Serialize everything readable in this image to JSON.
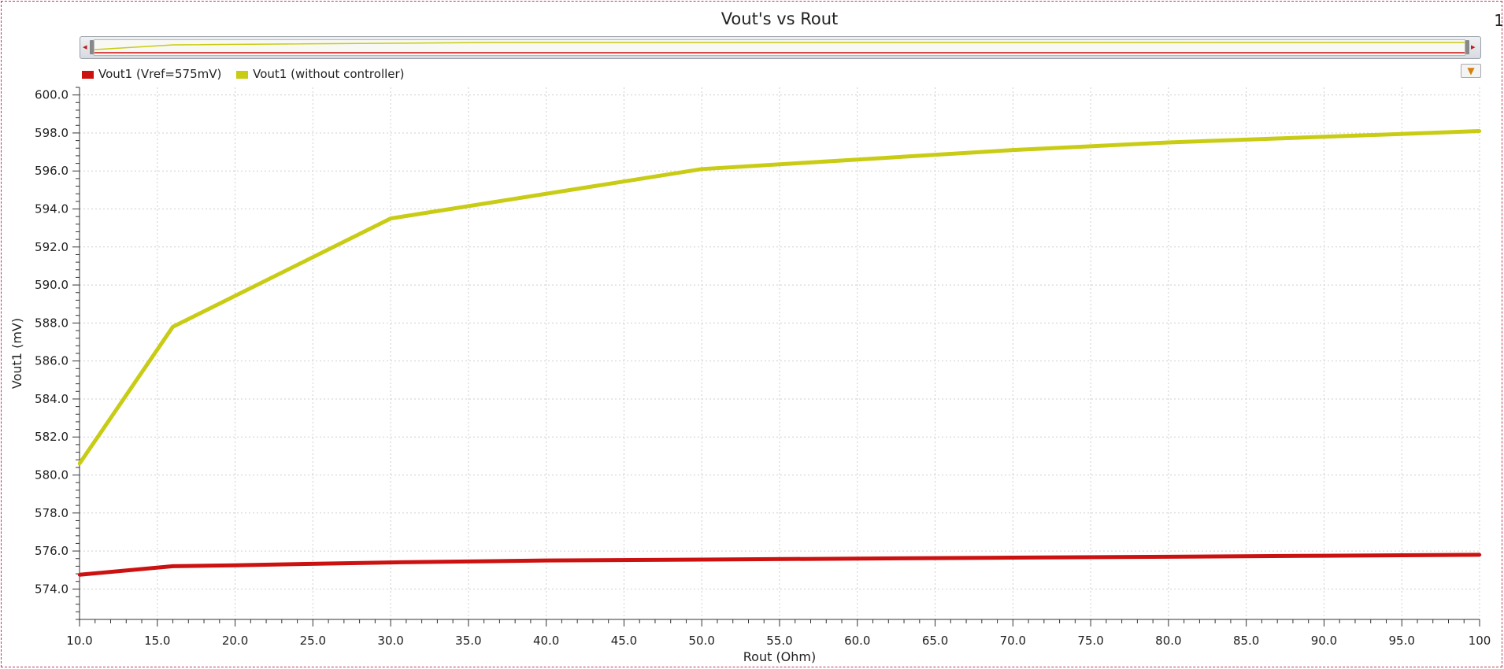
{
  "window": {
    "corner_mark": "1"
  },
  "legend": {
    "items": [
      {
        "label": "Vout1  (Vref=575mV)",
        "color": "#cc1111"
      },
      {
        "label": "Vout1 (without controller)",
        "color": "#c8cc14"
      }
    ]
  },
  "overview": {
    "left_arrow": "◂",
    "right_arrow": "▸"
  },
  "filter_icon_glyph": "▼",
  "chart_data": {
    "type": "line",
    "title": "Vout's vs Rout",
    "xlabel": "Rout (Ohm)",
    "ylabel": "Vout1 (mV)",
    "xlim": [
      10,
      100
    ],
    "ylim": [
      572.4,
      600.4
    ],
    "grid": true,
    "legend_position": "top-left",
    "x_ticks": [
      "10.0",
      "15.0",
      "20.0",
      "25.0",
      "30.0",
      "35.0",
      "40.0",
      "45.0",
      "50.0",
      "55.0",
      "60.0",
      "65.0",
      "70.0",
      "75.0",
      "80.0",
      "85.0",
      "90.0",
      "95.0",
      "100"
    ],
    "y_ticks": [
      "574.0",
      "576.0",
      "578.0",
      "580.0",
      "582.0",
      "584.0",
      "586.0",
      "588.0",
      "590.0",
      "592.0",
      "594.0",
      "596.0",
      "598.0",
      "600.0"
    ],
    "series": [
      {
        "name": "Vout1  (Vref=575mV)",
        "color": "#cc1111",
        "x": [
          10,
          16,
          20,
          30,
          40,
          50,
          60,
          70,
          80,
          90,
          100
        ],
        "y": [
          574.75,
          575.2,
          575.25,
          575.4,
          575.5,
          575.55,
          575.6,
          575.65,
          575.7,
          575.75,
          575.8
        ]
      },
      {
        "name": "Vout1 (without controller)",
        "color": "#c8cc14",
        "x": [
          10,
          16,
          30,
          50,
          60,
          70,
          80,
          90,
          100
        ],
        "y": [
          580.6,
          587.8,
          593.5,
          596.1,
          596.6,
          597.1,
          597.5,
          597.8,
          598.1
        ]
      }
    ]
  }
}
